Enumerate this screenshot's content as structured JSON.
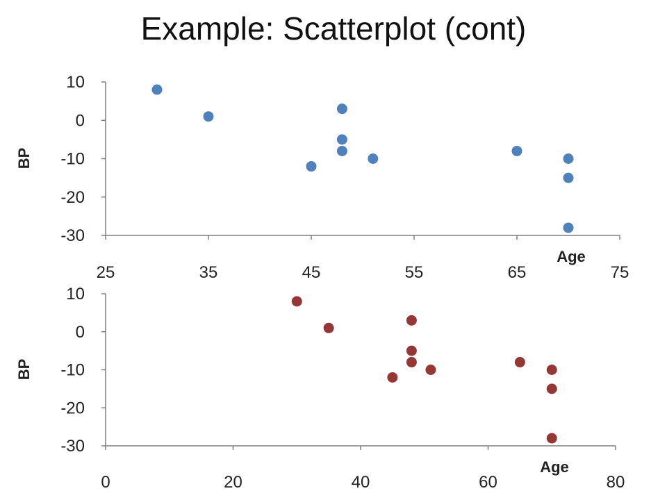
{
  "title": "Example: Scatterplot (cont)",
  "chart_data": [
    {
      "type": "scatter",
      "xlabel": "Age",
      "ylabel": "BP",
      "xlim": [
        25,
        75
      ],
      "ylim": [
        -30,
        10
      ],
      "xticks": [
        25,
        35,
        45,
        55,
        65,
        75
      ],
      "yticks": [
        10,
        0,
        -10,
        -20,
        -30
      ],
      "grid": false,
      "color": "#4F81BD",
      "points": [
        {
          "x": 30,
          "y": 8
        },
        {
          "x": 35,
          "y": 1
        },
        {
          "x": 45,
          "y": -12
        },
        {
          "x": 48,
          "y": 3
        },
        {
          "x": 48,
          "y": -5
        },
        {
          "x": 48,
          "y": -8
        },
        {
          "x": 51,
          "y": -10
        },
        {
          "x": 65,
          "y": -8
        },
        {
          "x": 70,
          "y": -10
        },
        {
          "x": 70,
          "y": -15
        },
        {
          "x": 70,
          "y": -28
        }
      ]
    },
    {
      "type": "scatter",
      "xlabel": "Age",
      "ylabel": "BP",
      "xlim": [
        0,
        80
      ],
      "ylim": [
        -30,
        10
      ],
      "xticks": [
        0,
        20,
        40,
        60,
        80
      ],
      "yticks": [
        10,
        0,
        -10,
        -20,
        -30
      ],
      "grid": false,
      "color": "#953735",
      "points": [
        {
          "x": 30,
          "y": 8
        },
        {
          "x": 35,
          "y": 1
        },
        {
          "x": 45,
          "y": -12
        },
        {
          "x": 48,
          "y": 3
        },
        {
          "x": 48,
          "y": -5
        },
        {
          "x": 48,
          "y": -8
        },
        {
          "x": 51,
          "y": -10
        },
        {
          "x": 65,
          "y": -8
        },
        {
          "x": 70,
          "y": -10
        },
        {
          "x": 70,
          "y": -15
        },
        {
          "x": 70,
          "y": -28
        }
      ]
    }
  ]
}
